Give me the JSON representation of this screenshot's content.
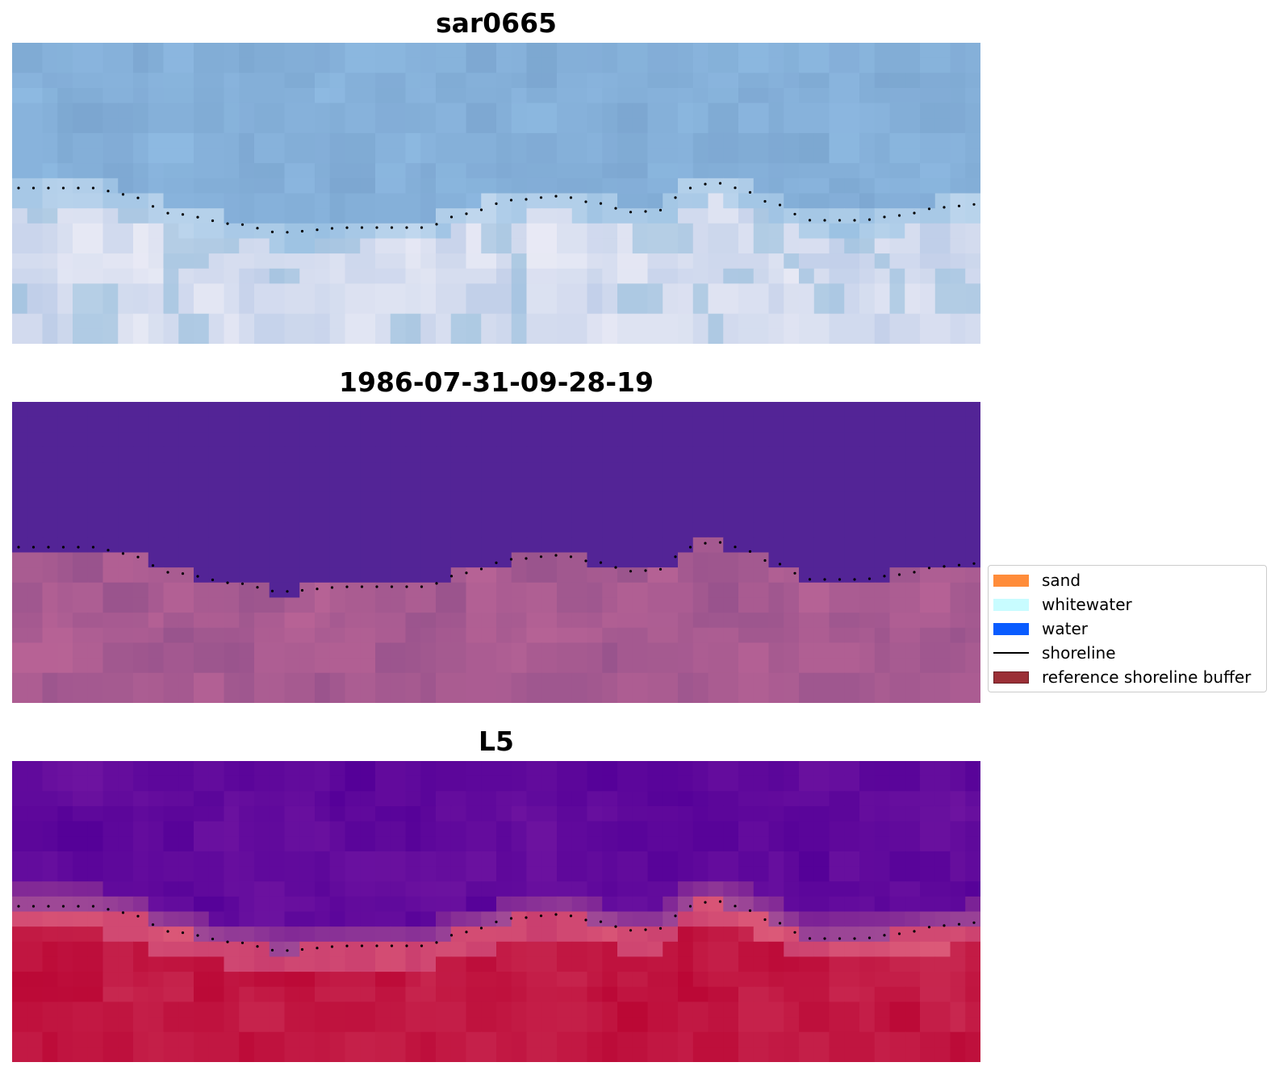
{
  "panels": [
    {
      "title": "sar0665",
      "style": "rgb"
    },
    {
      "title": "1986-07-31-09-28-19",
      "style": "classified"
    },
    {
      "title": "L5",
      "style": "index"
    }
  ],
  "legend": {
    "items": [
      {
        "label": "sand",
        "color": "#ff8c3a",
        "kind": "patch"
      },
      {
        "label": "whitewater",
        "color": "#c8fcff",
        "kind": "patch"
      },
      {
        "label": "water",
        "color": "#0a5cff",
        "kind": "patch"
      },
      {
        "label": "shoreline",
        "color": "#000000",
        "kind": "line"
      },
      {
        "label": "reference shoreline buffer",
        "color": "#9b2f36",
        "kind": "patch"
      }
    ]
  }
}
